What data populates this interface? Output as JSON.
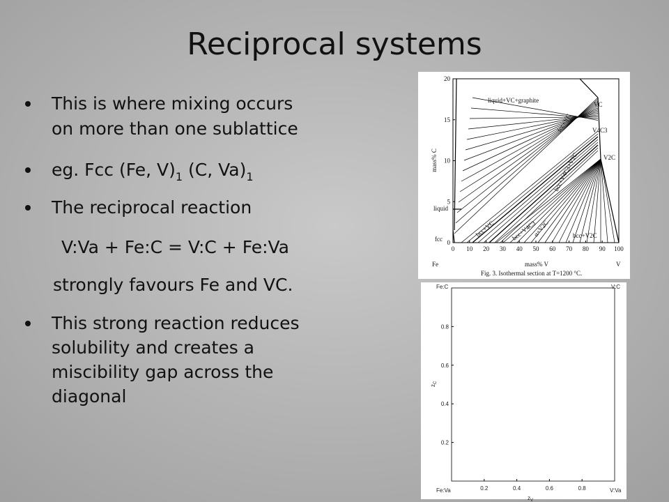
{
  "title": "Reciprocal systems",
  "bullets": [
    [
      "This is where mixing occurs",
      "on more than one sublattice"
    ],
    [
      "The reciprocal reaction"
    ],
    [
      " This strong reaction reduces",
      "solubility and creates a",
      "miscibility gap across the",
      "diagonal"
    ]
  ],
  "subscript_bullet": [
    "eg. Fcc (Fe, V)",
    "1",
    " (C, Va)",
    "1"
  ],
  "reaction": "V:Va + Fe:C = V:C + Fe:Va",
  "note": "strongly favours Fe and VC.",
  "figure1": {
    "y_label": "mass% C",
    "x_label": "mass% V",
    "x_end_labels": [
      "Fe",
      "V"
    ],
    "xlim": [
      0,
      100
    ],
    "ylim": [
      0,
      20
    ],
    "xticks": [
      0,
      10,
      20,
      30,
      40,
      50,
      60,
      70,
      80,
      90,
      100
    ],
    "yticks": [
      0,
      5,
      10,
      15,
      20
    ],
    "phase_labels": [
      "liquid+VC+graphite",
      "VC",
      "V4C3",
      "V2C",
      "fcc+VC",
      "bcc+V4C3+V2C",
      "liquid",
      "fcc",
      "bcc+VC",
      "bcc+V4C3",
      "α+V2C",
      "bcc+V2C"
    ],
    "caption": "Fig. 3. Isothermal section at T=1200 °C."
  },
  "figure2": {
    "corners": [
      "Fe:C",
      "V:C",
      "Fe:Va",
      "V:Va"
    ],
    "xlim": [
      0,
      1
    ],
    "ylim": [
      0,
      1
    ],
    "xticks": [
      0.2,
      0.4,
      0.6,
      0.8
    ],
    "yticks": [
      0.2,
      0.4,
      0.6,
      0.8
    ],
    "x_label": [
      "z",
      "V"
    ],
    "y_label": [
      "z",
      "C"
    ]
  }
}
